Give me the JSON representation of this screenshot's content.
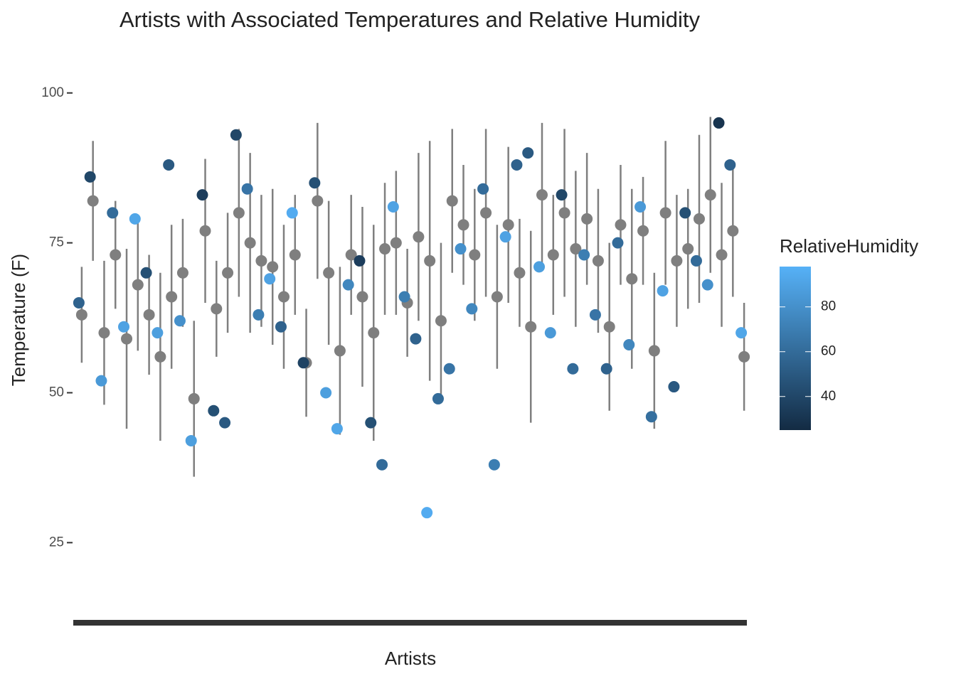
{
  "chart_data": {
    "type": "scatter",
    "title": "Artists with Associated Temperatures and Relative Humidity",
    "x_label": "Artists",
    "y_label": "Temperature (F)",
    "categories": [
      null,
      null,
      null,
      null,
      null,
      null,
      null,
      null,
      null,
      null,
      null,
      null,
      null,
      null,
      null,
      null,
      null,
      null,
      null,
      null,
      null,
      null,
      null,
      null,
      null,
      null,
      null,
      null,
      null,
      null,
      null,
      null,
      null,
      null,
      null,
      null,
      null,
      null,
      null,
      null,
      null,
      null,
      null,
      null,
      null,
      null,
      null,
      null,
      null,
      null,
      null,
      null,
      null,
      null,
      null,
      null,
      null,
      null,
      null,
      null
    ],
    "temperature": [
      65,
      86,
      52,
      80,
      61,
      79,
      70,
      60,
      88,
      62,
      42,
      83,
      47,
      45,
      93,
      84,
      63,
      69,
      61,
      80,
      55,
      85,
      50,
      44,
      68,
      72,
      45,
      38,
      81,
      66,
      59,
      30,
      49,
      54,
      74,
      64,
      84,
      38,
      76,
      88,
      90,
      71,
      60,
      83,
      54,
      73,
      63,
      54,
      75,
      58,
      81,
      46,
      67,
      51,
      80,
      72,
      68,
      95,
      88,
      60
    ],
    "humidity": [
      55,
      40,
      85,
      60,
      90,
      92,
      45,
      88,
      50,
      80,
      88,
      35,
      45,
      50,
      40,
      65,
      70,
      90,
      55,
      95,
      38,
      45,
      88,
      92,
      75,
      35,
      45,
      60,
      90,
      70,
      55,
      95,
      60,
      65,
      80,
      75,
      60,
      70,
      90,
      55,
      50,
      88,
      85,
      40,
      60,
      70,
      65,
      55,
      60,
      75,
      85,
      62,
      90,
      50,
      45,
      60,
      80,
      30,
      55,
      92
    ],
    "mean": [
      63,
      82,
      60,
      73,
      59,
      68,
      63,
      56,
      66,
      70,
      49,
      77,
      64,
      70,
      80,
      75,
      72,
      71,
      66,
      73,
      55,
      82,
      70,
      57,
      73,
      66,
      60,
      74,
      75,
      65,
      76,
      72,
      62,
      82,
      78,
      73,
      80,
      66,
      78,
      70,
      61,
      83,
      73,
      80,
      74,
      79,
      72,
      61,
      78,
      69,
      77,
      57,
      80,
      72,
      74,
      79,
      83,
      73,
      77,
      56
    ],
    "sd": [
      8,
      10,
      12,
      9,
      15,
      11,
      10,
      14,
      12,
      9,
      13,
      12,
      8,
      10,
      14,
      15,
      11,
      13,
      12,
      10,
      9,
      13,
      12,
      14,
      10,
      15,
      18,
      11,
      12,
      9,
      14,
      20,
      13,
      12,
      10,
      11,
      14,
      12,
      13,
      9,
      16,
      12,
      10,
      14,
      13,
      11,
      12,
      14,
      10,
      15,
      9,
      13,
      12,
      11,
      10,
      14,
      13,
      12,
      11,
      9
    ],
    "summary_color": "#7f7f7f",
    "ylim": [
      12,
      104
    ],
    "yticks": [
      25,
      50,
      75,
      100
    ],
    "colorbar": {
      "title": "RelativeHumidity",
      "lim": [
        25,
        98
      ],
      "ticks": [
        40,
        60,
        80
      ],
      "colors": [
        "#132B43",
        "#56B1F7"
      ]
    }
  }
}
